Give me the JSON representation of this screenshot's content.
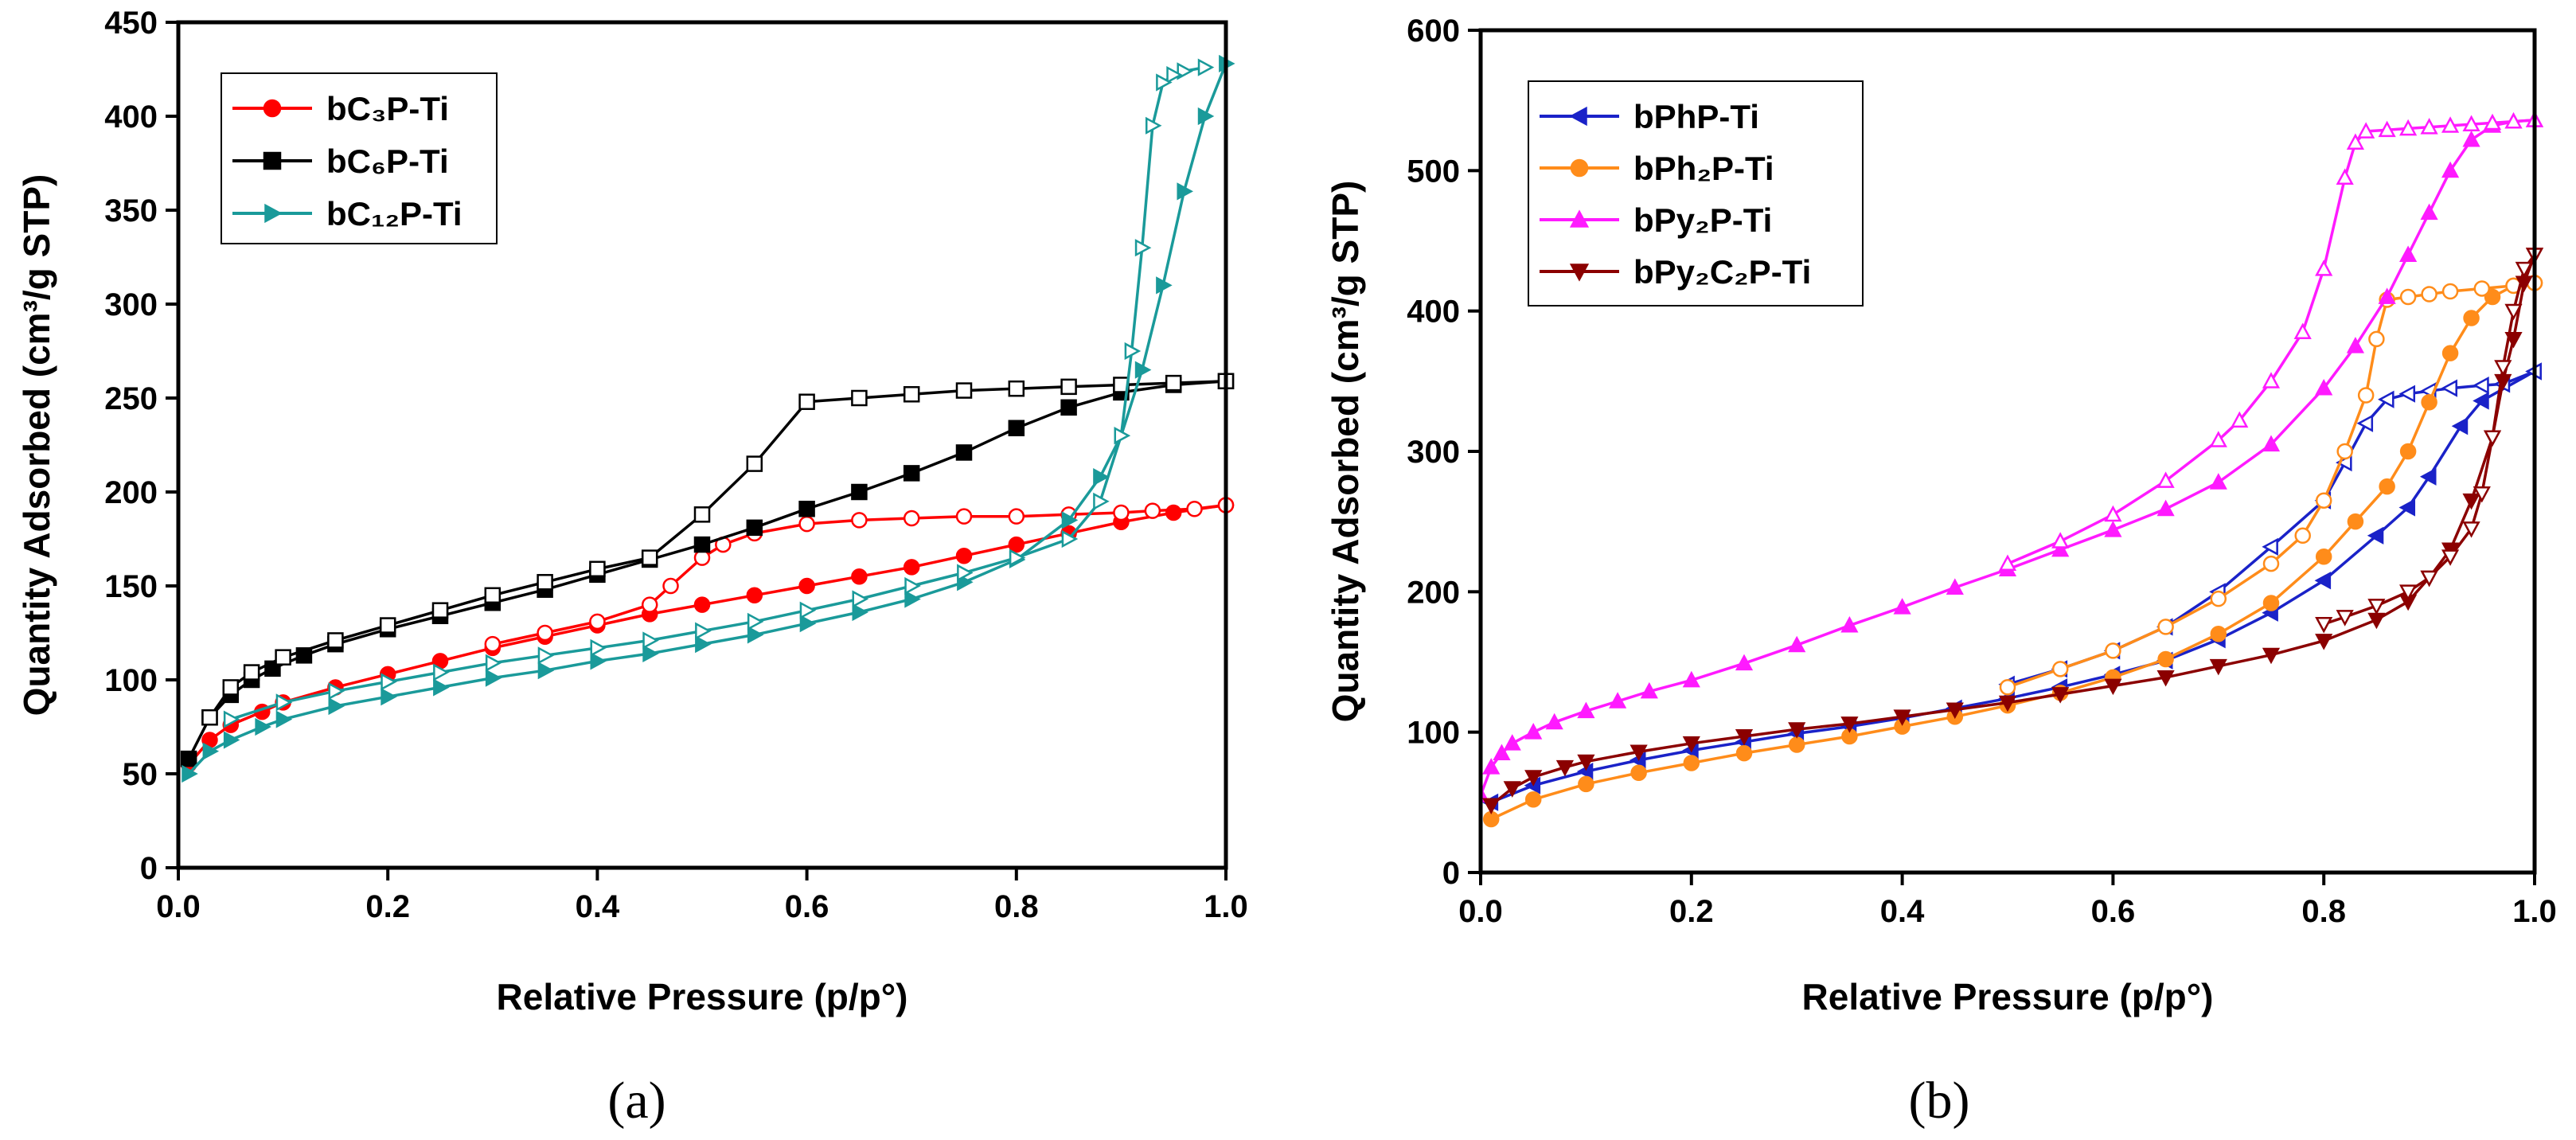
{
  "panels": [
    {
      "panel_label": "(a)",
      "chart_data": {
        "type": "line",
        "xlabel": "Relative Pressure (p/p°)",
        "ylabel": "Quantity Adsorbed (cm³/g STP)",
        "xlim": [
          0,
          1.0
        ],
        "ylim": [
          0,
          450
        ],
        "xticks": [
          "0.0",
          "0.2",
          "0.4",
          "0.6",
          "0.8",
          "1.0"
        ],
        "xtick_values": [
          0,
          0.2,
          0.4,
          0.6,
          0.8,
          1.0
        ],
        "yticks": [
          "0",
          "50",
          "100",
          "150",
          "200",
          "250",
          "300",
          "350",
          "400",
          "450"
        ],
        "ytick_values": [
          0,
          50,
          100,
          150,
          200,
          250,
          300,
          350,
          400,
          450
        ],
        "legend_position": "top-left",
        "series": [
          {
            "name": "bC₃P-Ti",
            "color": "#ff0000",
            "marker": "circle",
            "adsorption": {
              "x": [
                0.01,
                0.03,
                0.05,
                0.08,
                0.1,
                0.15,
                0.2,
                0.25,
                0.3,
                0.35,
                0.4,
                0.45,
                0.5,
                0.55,
                0.6,
                0.65,
                0.7,
                0.75,
                0.8,
                0.85,
                0.9,
                0.95,
                1.0
              ],
              "y": [
                55,
                68,
                76,
                83,
                88,
                96,
                103,
                110,
                117,
                123,
                129,
                135,
                140,
                145,
                150,
                155,
                160,
                166,
                172,
                178,
                184,
                189,
                193
              ]
            },
            "desorption": {
              "x": [
                1.0,
                0.97,
                0.93,
                0.9,
                0.85,
                0.8,
                0.75,
                0.7,
                0.65,
                0.6,
                0.55,
                0.52,
                0.5,
                0.47,
                0.45,
                0.4,
                0.35,
                0.3
              ],
              "y": [
                193,
                191,
                190,
                189,
                188,
                187,
                187,
                186,
                185,
                183,
                178,
                172,
                165,
                150,
                140,
                131,
                125,
                119
              ]
            }
          },
          {
            "name": "bC₆P-Ti",
            "color": "#000000",
            "marker": "square",
            "adsorption": {
              "x": [
                0.01,
                0.03,
                0.05,
                0.07,
                0.09,
                0.12,
                0.15,
                0.2,
                0.25,
                0.3,
                0.35,
                0.4,
                0.45,
                0.5,
                0.55,
                0.6,
                0.65,
                0.7,
                0.75,
                0.8,
                0.85,
                0.9,
                0.95,
                1.0
              ],
              "y": [
                58,
                80,
                92,
                100,
                106,
                113,
                119,
                127,
                134,
                141,
                148,
                156,
                164,
                172,
                181,
                191,
                200,
                210,
                221,
                234,
                245,
                253,
                257,
                259
              ]
            },
            "desorption": {
              "x": [
                1.0,
                0.95,
                0.9,
                0.85,
                0.8,
                0.75,
                0.7,
                0.65,
                0.6,
                0.55,
                0.5,
                0.45,
                0.4,
                0.35,
                0.3,
                0.25,
                0.2,
                0.15,
                0.1,
                0.07,
                0.05,
                0.03
              ],
              "y": [
                259,
                258,
                257,
                256,
                255,
                254,
                252,
                250,
                248,
                215,
                188,
                165,
                159,
                152,
                145,
                137,
                129,
                121,
                112,
                104,
                96,
                80
              ]
            }
          },
          {
            "name": "bC₁₂P-Ti",
            "color": "#1a9a9a",
            "marker": "triangle-right",
            "adsorption": {
              "x": [
                0.01,
                0.03,
                0.05,
                0.08,
                0.1,
                0.15,
                0.2,
                0.25,
                0.3,
                0.35,
                0.4,
                0.45,
                0.5,
                0.55,
                0.6,
                0.65,
                0.7,
                0.75,
                0.8,
                0.85,
                0.88,
                0.9,
                0.92,
                0.94,
                0.96,
                0.98,
                1.0
              ],
              "y": [
                50,
                62,
                68,
                75,
                79,
                86,
                91,
                96,
                101,
                105,
                110,
                114,
                119,
                124,
                130,
                136,
                143,
                152,
                164,
                185,
                208,
                230,
                265,
                310,
                360,
                400,
                428
              ]
            },
            "desorption": {
              "x": [
                0.98,
                0.96,
                0.95,
                0.94,
                0.93,
                0.92,
                0.91,
                0.9,
                0.88,
                0.85,
                0.8,
                0.75,
                0.7,
                0.65,
                0.6,
                0.55,
                0.5,
                0.45,
                0.4,
                0.35,
                0.3,
                0.25,
                0.2,
                0.15,
                0.1,
                0.05
              ],
              "y": [
                426,
                424,
                422,
                418,
                395,
                330,
                275,
                230,
                195,
                175,
                165,
                157,
                150,
                143,
                137,
                131,
                126,
                121,
                117,
                113,
                109,
                104,
                99,
                94,
                88,
                79
              ]
            }
          }
        ]
      }
    },
    {
      "panel_label": "(b)",
      "chart_data": {
        "type": "line",
        "xlabel": "Relative Pressure (p/p°)",
        "ylabel": "Quantity Adsorbed (cm³/g STP)",
        "xlim": [
          0,
          1.0
        ],
        "ylim": [
          0,
          600
        ],
        "xticks": [
          "0.0",
          "0.2",
          "0.4",
          "0.6",
          "0.8",
          "1.0"
        ],
        "xtick_values": [
          0,
          0.2,
          0.4,
          0.6,
          0.8,
          1.0
        ],
        "yticks": [
          "0",
          "100",
          "200",
          "300",
          "400",
          "500",
          "600"
        ],
        "ytick_values": [
          0,
          100,
          200,
          300,
          400,
          500,
          600
        ],
        "legend_position": "top-left",
        "series": [
          {
            "name": "bPhP-Ti",
            "color": "#1a22c8",
            "marker": "triangle-left",
            "adsorption": {
              "x": [
                0.01,
                0.05,
                0.1,
                0.15,
                0.2,
                0.25,
                0.3,
                0.35,
                0.4,
                0.45,
                0.5,
                0.55,
                0.6,
                0.65,
                0.7,
                0.75,
                0.8,
                0.85,
                0.88,
                0.9,
                0.93,
                0.95,
                1.0
              ],
              "y": [
                50,
                62,
                72,
                80,
                87,
                93,
                99,
                104,
                110,
                117,
                124,
                132,
                141,
                151,
                166,
                185,
                208,
                240,
                260,
                282,
                318,
                336,
                357
              ]
            },
            "desorption": {
              "x": [
                1.0,
                0.97,
                0.95,
                0.92,
                0.9,
                0.88,
                0.86,
                0.84,
                0.82,
                0.8,
                0.75,
                0.7,
                0.65,
                0.6,
                0.55,
                0.5
              ],
              "y": [
                357,
                348,
                347,
                345,
                343,
                341,
                337,
                320,
                292,
                265,
                232,
                200,
                175,
                158,
                145,
                134
              ]
            }
          },
          {
            "name": "bPh₂P-Ti",
            "color": "#ff8c1a",
            "marker": "circle",
            "adsorption": {
              "x": [
                0.01,
                0.05,
                0.1,
                0.15,
                0.2,
                0.25,
                0.3,
                0.35,
                0.4,
                0.45,
                0.5,
                0.55,
                0.6,
                0.65,
                0.7,
                0.75,
                0.8,
                0.83,
                0.86,
                0.88,
                0.9,
                0.92,
                0.94,
                0.96,
                0.98,
                1.0
              ],
              "y": [
                38,
                52,
                63,
                71,
                78,
                85,
                91,
                97,
                104,
                111,
                119,
                128,
                139,
                152,
                170,
                192,
                225,
                250,
                275,
                300,
                335,
                370,
                395,
                410,
                418,
                420
              ]
            },
            "desorption": {
              "x": [
                1.0,
                0.98,
                0.95,
                0.92,
                0.9,
                0.88,
                0.86,
                0.85,
                0.84,
                0.82,
                0.8,
                0.78,
                0.75,
                0.7,
                0.65,
                0.6,
                0.55,
                0.5
              ],
              "y": [
                420,
                418,
                416,
                414,
                412,
                410,
                408,
                380,
                340,
                300,
                265,
                240,
                220,
                195,
                175,
                158,
                145,
                132
              ]
            }
          },
          {
            "name": "bPy₂P-Ti",
            "color": "#ff1aff",
            "marker": "triangle-up",
            "adsorption": {
              "x": [
                0.0,
                0.01,
                0.02,
                0.03,
                0.05,
                0.07,
                0.1,
                0.13,
                0.16,
                0.2,
                0.25,
                0.3,
                0.35,
                0.4,
                0.45,
                0.5,
                0.55,
                0.6,
                0.65,
                0.7,
                0.75,
                0.8,
                0.83,
                0.86,
                0.88,
                0.9,
                0.92,
                0.94,
                0.96,
                0.98,
                1.0
              ],
              "y": [
                55,
                75,
                85,
                92,
                100,
                107,
                115,
                122,
                129,
                137,
                149,
                162,
                176,
                189,
                203,
                216,
                230,
                244,
                259,
                278,
                305,
                345,
                375,
                410,
                440,
                470,
                500,
                522,
                532,
                535,
                536
              ]
            },
            "desorption": {
              "x": [
                1.0,
                0.98,
                0.96,
                0.94,
                0.92,
                0.9,
                0.88,
                0.86,
                0.84,
                0.83,
                0.82,
                0.8,
                0.78,
                0.75,
                0.72,
                0.7,
                0.65,
                0.6,
                0.55,
                0.5
              ],
              "y": [
                536,
                535,
                534,
                533,
                532,
                531,
                530,
                529,
                528,
                520,
                495,
                430,
                385,
                350,
                322,
                308,
                279,
                255,
                236,
                220
              ]
            }
          },
          {
            "name": "bPy₂C₂P-Ti",
            "color": "#8b0000",
            "marker": "triangle-down",
            "adsorption": {
              "x": [
                0.01,
                0.03,
                0.05,
                0.08,
                0.1,
                0.15,
                0.2,
                0.25,
                0.3,
                0.35,
                0.4,
                0.45,
                0.5,
                0.55,
                0.6,
                0.65,
                0.7,
                0.75,
                0.8,
                0.85,
                0.88,
                0.9,
                0.92,
                0.94,
                0.96,
                0.97,
                0.98,
                0.99,
                1.0
              ],
              "y": [
                48,
                60,
                68,
                75,
                79,
                86,
                92,
                97,
                102,
                106,
                111,
                116,
                121,
                127,
                133,
                139,
                147,
                155,
                165,
                180,
                193,
                210,
                230,
                265,
                310,
                350,
                380,
                420,
                440
              ]
            },
            "desorption": {
              "x": [
                1.0,
                0.99,
                0.98,
                0.97,
                0.96,
                0.95,
                0.94,
                0.92,
                0.9,
                0.88,
                0.85,
                0.82,
                0.8
              ],
              "y": [
                440,
                430,
                400,
                360,
                310,
                270,
                245,
                225,
                210,
                200,
                190,
                182,
                177
              ]
            }
          }
        ]
      }
    }
  ]
}
